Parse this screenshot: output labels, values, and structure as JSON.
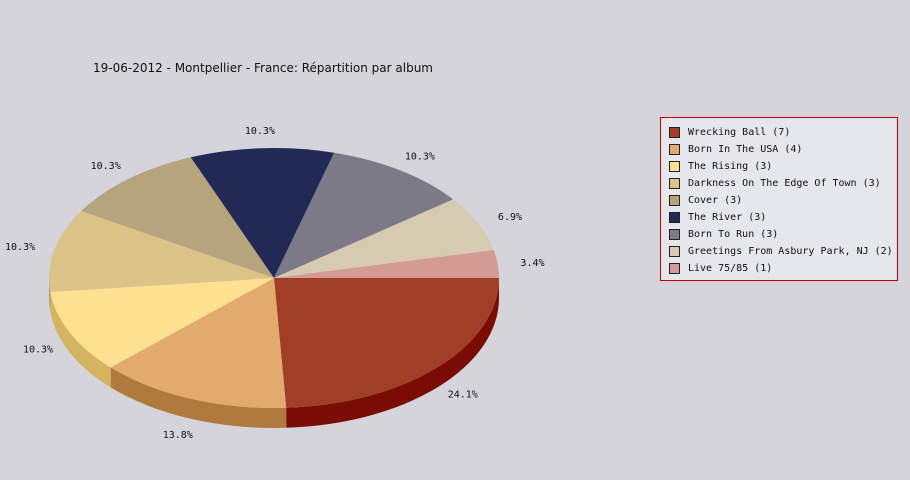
{
  "chart_data": {
    "type": "pie",
    "title": "19-06-2012 - Montpellier - France:  Répartition par album",
    "legend_position": "right",
    "slices": [
      {
        "label": "Wrecking Ball (7)",
        "value": 7,
        "percent_label": "24.1%",
        "color": "#a03e28",
        "side": "#7a0c04"
      },
      {
        "label": "Born In The USA (4)",
        "value": 4,
        "percent_label": "13.8%",
        "color": "#e2aa6c",
        "side": "#b07a3e"
      },
      {
        "label": "The Rising (3)",
        "value": 3,
        "percent_label": "10.3%",
        "color": "#fde090",
        "side": "#d4b460"
      },
      {
        "label": "Darkness On The Edge Of Town (3)",
        "value": 3,
        "percent_label": "10.3%",
        "color": "#dcc387",
        "side": "#b19a5c"
      },
      {
        "label": "Cover (3)",
        "value": 3,
        "percent_label": "10.3%",
        "color": "#b6a47c",
        "side": "#8c7c56"
      },
      {
        "label": "The River (3)",
        "value": 3,
        "percent_label": "10.3%",
        "color": "#222955",
        "side": "#141a38"
      },
      {
        "label": "Born To Run (3)",
        "value": 3,
        "percent_label": "10.3%",
        "color": "#7b7a86",
        "side": "#5a5964"
      },
      {
        "label": "Greetings From Asbury Park, NJ (2)",
        "value": 2,
        "percent_label": "6.9%",
        "color": "#d6cab0",
        "side": "#aca088"
      },
      {
        "label": "Live 75/85 (1)",
        "value": 1,
        "percent_label": "3.4%",
        "color": "#d49a94",
        "side": "#a8706a"
      }
    ]
  }
}
